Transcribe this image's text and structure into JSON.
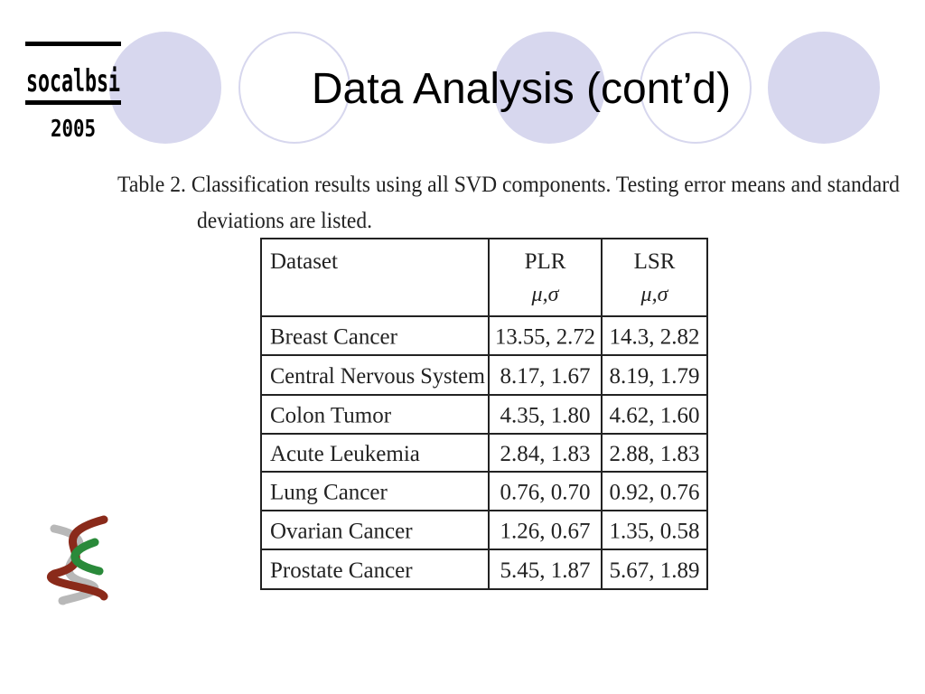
{
  "logo": {
    "name": "socalbsi",
    "year": "2005"
  },
  "title": "Data Analysis (cont’d)",
  "caption": {
    "line1": "Table 2. Classification results using all SVD components. Testing error means and standard",
    "line2": "deviations are listed."
  },
  "table": {
    "header": [
      {
        "label": "Dataset"
      },
      {
        "label": "PLR",
        "sub": "μ,σ"
      },
      {
        "label": "LSR",
        "sub": "μ,σ"
      }
    ],
    "rows": [
      [
        "Breast Cancer",
        "13.55, 2.72",
        "14.3, 2.82"
      ],
      [
        "Central Nervous System",
        "8.17, 1.67",
        "8.19, 1.79"
      ],
      [
        "Colon Tumor",
        "4.35, 1.80",
        "4.62, 1.60"
      ],
      [
        "Acute Leukemia",
        "2.84, 1.83",
        "2.88, 1.83"
      ],
      [
        "Lung Cancer",
        "0.76, 0.70",
        "0.92, 0.76"
      ],
      [
        "Ovarian Cancer",
        "1.26, 0.67",
        "1.35, 0.58"
      ],
      [
        "Prostate Cancer",
        "5.45, 1.87",
        "5.67, 1.89"
      ]
    ]
  }
}
